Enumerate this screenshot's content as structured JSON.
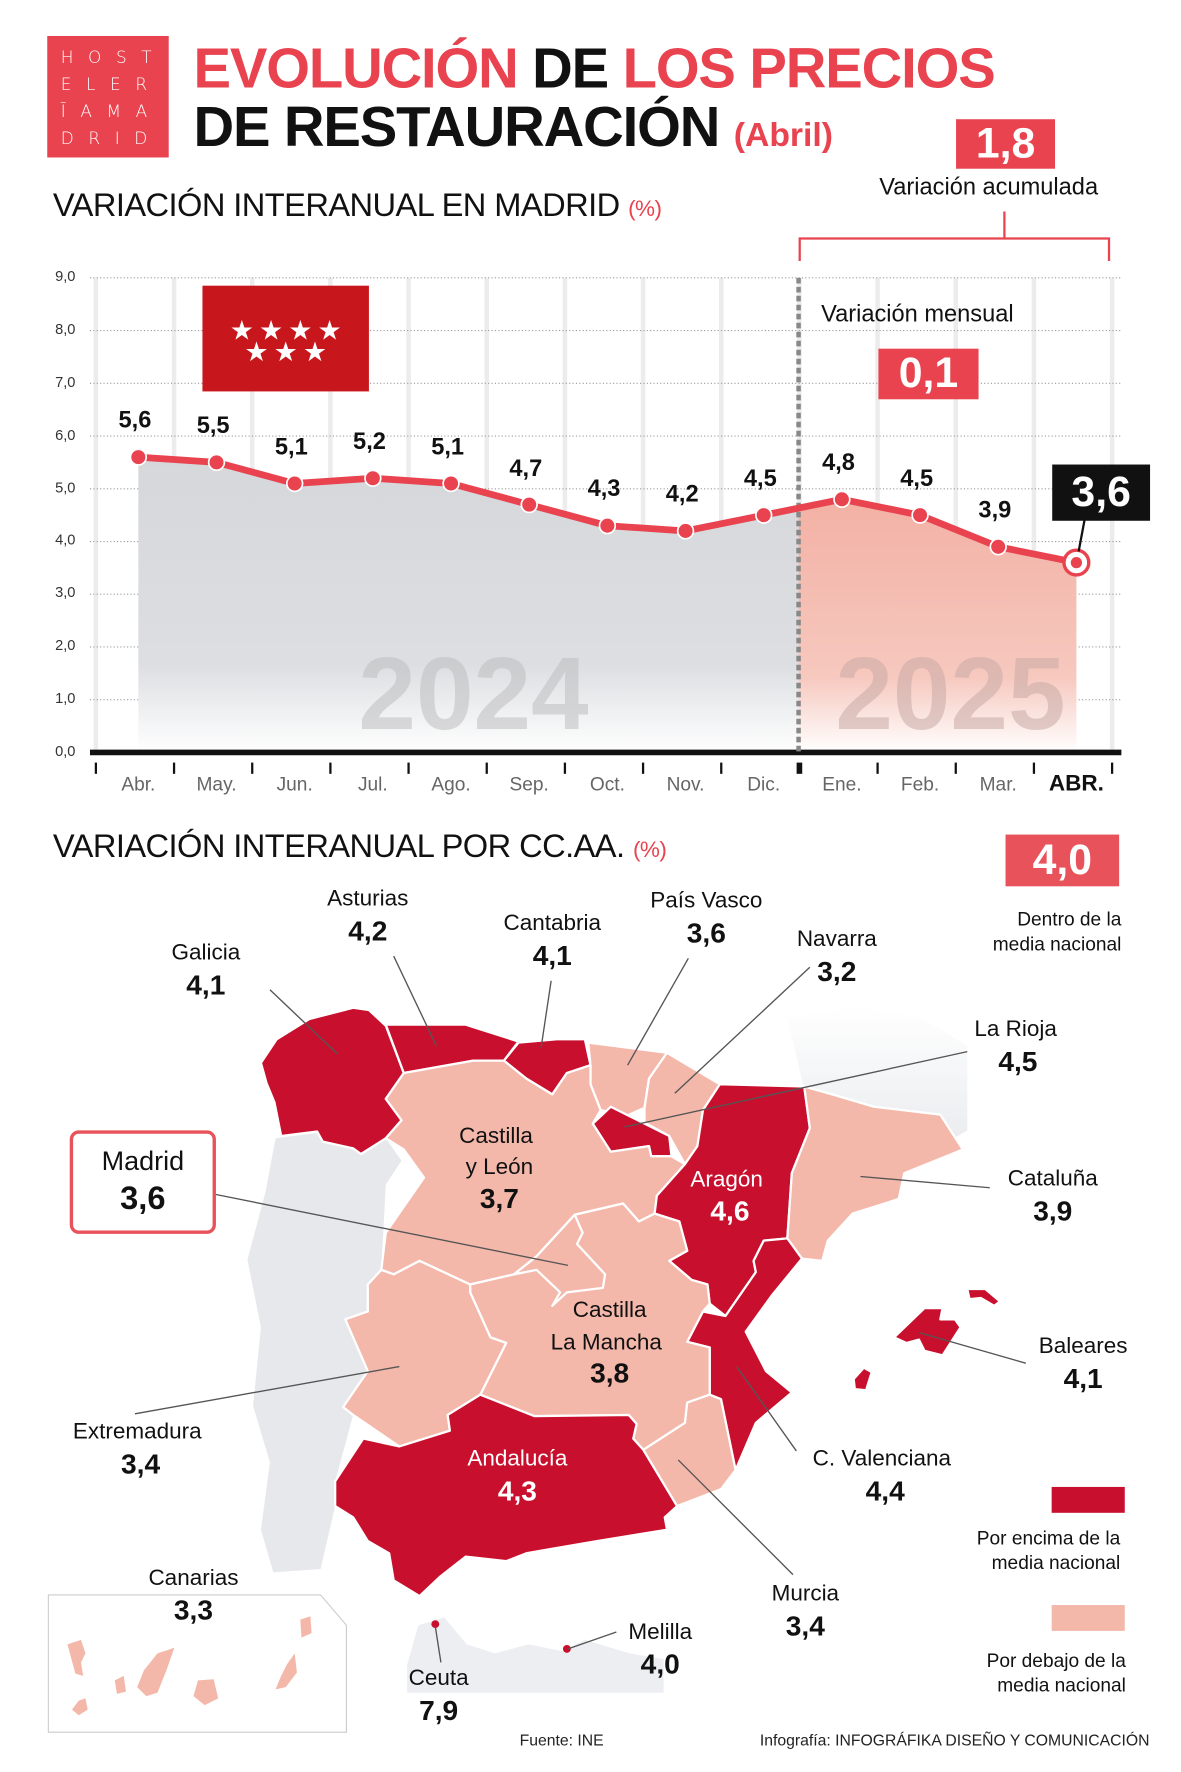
{
  "logo": {
    "rows": [
      "HOST",
      "ELER",
      "ĪAMA",
      "DRID"
    ]
  },
  "header": {
    "title_line1": [
      "EVOLUCIÓN",
      "DE",
      "LOS PRECIOS"
    ],
    "title_line2": "DE RESTAURACIÓN",
    "title_month": "(Abril)"
  },
  "colors": {
    "brand": "#e8434f",
    "above": "#c8102e",
    "below": "#f4b8ab",
    "line": "#e8434f",
    "area_2024": "#d7d9dc",
    "area_2025": "#f4b6ab"
  },
  "madrid_section": {
    "title": "VARIACIÓN INTERANUAL EN MADRID",
    "unit": "(%)",
    "accumulated_value": "1,8",
    "accumulated_label": "Variación acumulada",
    "monthly_label": "Variación mensual",
    "monthly_value": "0,1",
    "flag_icon": "comunidad-de-madrid-flag"
  },
  "chart_data": {
    "type": "line",
    "title": "VARIACIÓN INTERANUAL EN MADRID (%)",
    "categories": [
      "Abr.",
      "May.",
      "Jun.",
      "Jul.",
      "Ago.",
      "Sep.",
      "Oct.",
      "Nov.",
      "Dic.",
      "Ene.",
      "Feb.",
      "Mar.",
      "ABR."
    ],
    "values": [
      5.6,
      5.5,
      5.1,
      5.2,
      5.1,
      4.7,
      4.3,
      4.2,
      4.5,
      4.8,
      4.5,
      3.9,
      3.6
    ],
    "value_labels": [
      "5,6",
      "5,5",
      "5,1",
      "5,2",
      "5,1",
      "4,7",
      "4,3",
      "4,2",
      "4,5",
      "4,8",
      "4,5",
      "3,9",
      "3,6"
    ],
    "year_labels": [
      "2024",
      "2025"
    ],
    "ylim": [
      0,
      9
    ],
    "yticks": [
      "0,0",
      "1,0",
      "2,0",
      "3,0",
      "4,0",
      "5,0",
      "6,0",
      "7,0",
      "8,0",
      "9,0"
    ],
    "grid": true
  },
  "regions_section": {
    "title": "VARIACIÓN INTERANUAL POR CC.AA.",
    "unit": "(%)",
    "national_value": "4,0",
    "national_label": [
      "Dentro de la",
      "media nacional"
    ],
    "legend_above": [
      "Por encima de la",
      "media nacional"
    ],
    "legend_below": [
      "Por debajo de la",
      "media nacional"
    ],
    "regions": [
      {
        "name": "Galicia",
        "value": "4,1",
        "category": "above"
      },
      {
        "name": "Asturias",
        "value": "4,2",
        "category": "above"
      },
      {
        "name": "Cantabria",
        "value": "4,1",
        "category": "above"
      },
      {
        "name": "País Vasco",
        "value": "3,6",
        "category": "below"
      },
      {
        "name": "Navarra",
        "value": "3,2",
        "category": "below"
      },
      {
        "name": "La Rioja",
        "value": "4,5",
        "category": "above"
      },
      {
        "name": "Cataluña",
        "value": "3,9",
        "category": "below"
      },
      {
        "name": "Baleares",
        "value": "4,1",
        "category": "above"
      },
      {
        "name": "C. Valenciana",
        "value": "4,4",
        "category": "above"
      },
      {
        "name": "Murcia",
        "value": "3,4",
        "category": "below"
      },
      {
        "name": "Melilla",
        "value": "4,0",
        "category": "national"
      },
      {
        "name": "Ceuta",
        "value": "7,9",
        "category": "above"
      },
      {
        "name": "Canarias",
        "value": "3,3",
        "category": "below"
      },
      {
        "name": "Extremadura",
        "value": "3,4",
        "category": "below"
      },
      {
        "name": "Madrid",
        "value": "3,6",
        "category": "below"
      },
      {
        "name": "Castilla y León",
        "name_lines": [
          "Castilla",
          "y León"
        ],
        "value": "3,7",
        "category": "below"
      },
      {
        "name": "Aragón",
        "value": "4,6",
        "category": "above"
      },
      {
        "name": "Castilla La Mancha",
        "name_lines": [
          "Castilla",
          "La Mancha"
        ],
        "value": "3,8",
        "category": "below"
      },
      {
        "name": "Andalucía",
        "value": "4,3",
        "category": "above"
      }
    ]
  },
  "footer": {
    "source": "Fuente: INE",
    "credit": "Infografía: INFOGRÁFIKA DISEÑO Y COMUNICACIÓN"
  }
}
